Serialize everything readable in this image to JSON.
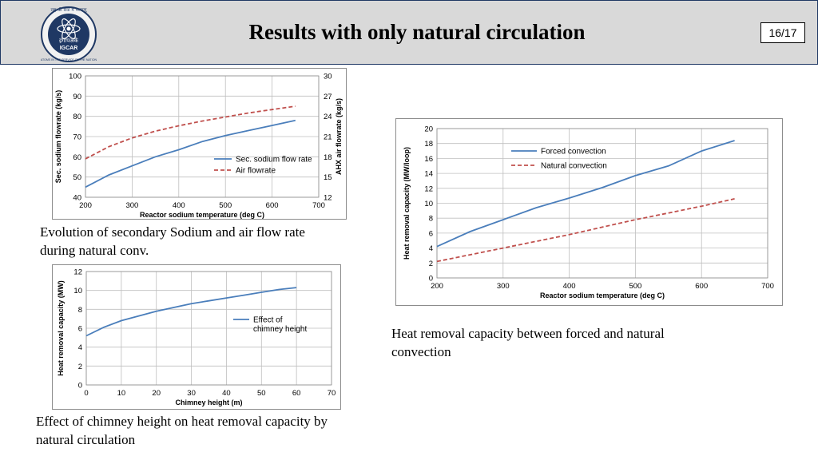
{
  "header": {
    "title": "Results with only natural circulation",
    "page_number": "16/17",
    "logo": {
      "text_top": "राष्ट्र की सेवा में परमाणु",
      "text_mid": "इंगांपअकें",
      "text_igcar": "IGCAR",
      "text_bottom": "ATOMS IN THE SERVICE OF THE NATION"
    }
  },
  "captions": {
    "chart1": "Evolution of secondary Sodium and air flow rate during natural conv.",
    "chart2": "Effect of chimney height on heat removal capacity by natural circulation",
    "chart3": "Heat removal capacity between forced and natural convection"
  },
  "colors": {
    "series_blue": "#4a7ebb",
    "series_red": "#c0504d",
    "header_bg": "#d9d9d9",
    "header_border": "#1f3864"
  },
  "chart_data": [
    {
      "type": "line",
      "xlabel": "Reactor sodium temperature (deg C)",
      "ylabel": "Sec. sodium flowrate (kg/s)",
      "y2label": "AHX air flowrate (kg/s)",
      "xlim": [
        200,
        700
      ],
      "xticks": [
        200,
        300,
        400,
        500,
        600,
        700
      ],
      "ylim": [
        40,
        100
      ],
      "yticks": [
        40,
        50,
        60,
        70,
        80,
        90,
        100
      ],
      "y2lim": [
        12,
        30
      ],
      "y2ticks": [
        12,
        15,
        18,
        21,
        24,
        27,
        30
      ],
      "grid": true,
      "legend": "lower-right",
      "series": [
        {
          "name": "Sec. sodium flow rate",
          "axis": "left",
          "style": "solid",
          "color": "#4a7ebb",
          "x": [
            200,
            250,
            300,
            350,
            400,
            450,
            500,
            550,
            600,
            650
          ],
          "y": [
            45,
            51,
            55.5,
            60,
            63.5,
            67.5,
            70.5,
            73,
            75.5,
            78
          ]
        },
        {
          "name": "Air flowrate",
          "axis": "right",
          "style": "dashed",
          "color": "#c0504d",
          "x": [
            200,
            250,
            300,
            350,
            400,
            450,
            500,
            550,
            600,
            650
          ],
          "y": [
            17.7,
            19.5,
            20.8,
            21.8,
            22.6,
            23.3,
            23.9,
            24.5,
            25.0,
            25.5
          ]
        }
      ]
    },
    {
      "type": "line",
      "xlabel": "Chimney height (m)",
      "ylabel": "Heat removal capacity (MW)",
      "xlim": [
        0,
        70
      ],
      "xticks": [
        0,
        10,
        20,
        30,
        40,
        50,
        60,
        70
      ],
      "ylim": [
        0,
        12
      ],
      "yticks": [
        0,
        2,
        4,
        6,
        8,
        10,
        12
      ],
      "grid": true,
      "legend": "right",
      "series": [
        {
          "name": "Effect of chimney height",
          "style": "solid",
          "color": "#4a7ebb",
          "x": [
            0,
            5,
            10,
            15,
            20,
            25,
            30,
            35,
            40,
            45,
            50,
            55,
            60
          ],
          "y": [
            5.2,
            6.1,
            6.8,
            7.3,
            7.8,
            8.2,
            8.6,
            8.9,
            9.2,
            9.5,
            9.8,
            10.1,
            10.3
          ]
        }
      ]
    },
    {
      "type": "line",
      "xlabel": "Reactor sodium temperature (deg C)",
      "ylabel": "Heat removal capacity (MW/loop)",
      "xlim": [
        200,
        700
      ],
      "xticks": [
        200,
        300,
        400,
        500,
        600,
        700
      ],
      "ylim": [
        0,
        20
      ],
      "yticks": [
        0,
        2,
        4,
        6,
        8,
        10,
        12,
        14,
        16,
        18,
        20
      ],
      "grid": true,
      "legend": "top-left",
      "series": [
        {
          "name": "Forced convection",
          "style": "solid",
          "color": "#4a7ebb",
          "x": [
            200,
            250,
            300,
            350,
            400,
            450,
            500,
            550,
            600,
            650
          ],
          "y": [
            4.2,
            6.2,
            7.8,
            9.4,
            10.7,
            12.1,
            13.7,
            15.0,
            17.0,
            18.4
          ]
        },
        {
          "name": "Natural convection",
          "style": "dashed",
          "color": "#c0504d",
          "x": [
            200,
            250,
            300,
            350,
            400,
            450,
            500,
            550,
            600,
            650
          ],
          "y": [
            2.2,
            3.1,
            4.0,
            4.9,
            5.8,
            6.8,
            7.8,
            8.7,
            9.6,
            10.6
          ]
        }
      ]
    }
  ]
}
